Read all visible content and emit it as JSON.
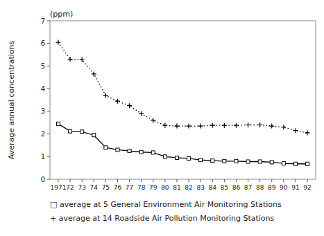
{
  "chart_data": {
    "type": "line",
    "y_label": "Average annual concentrations",
    "annotations": [
      "(ppm)"
    ],
    "x": [
      1971,
      1972,
      1973,
      1974,
      1975,
      1976,
      1977,
      1978,
      1979,
      1980,
      1981,
      1982,
      1983,
      1984,
      1985,
      1986,
      1987,
      1988,
      1989,
      1990,
      1991,
      1992
    ],
    "series": [
      {
        "name": "□ average at 5 General Environment Air Monitoring Stations",
        "color": "#000000",
        "marker": "square",
        "line_style": "solid",
        "values": [
          2.45,
          2.12,
          2.1,
          1.95,
          1.4,
          1.3,
          1.25,
          1.2,
          1.18,
          1.0,
          0.95,
          0.92,
          0.85,
          0.82,
          0.8,
          0.8,
          0.78,
          0.78,
          0.75,
          0.7,
          0.68,
          0.68
        ]
      },
      {
        "name": "+ average at 14 Roadside Air Pollution Monitoring Stations",
        "color": "#000000",
        "marker": "plus",
        "line_style": "dotted",
        "values": [
          6.05,
          5.3,
          5.28,
          4.65,
          3.7,
          3.45,
          3.25,
          2.9,
          2.6,
          2.38,
          2.35,
          2.35,
          2.35,
          2.38,
          2.38,
          2.38,
          2.4,
          2.4,
          2.35,
          2.3,
          2.15,
          2.05
        ]
      }
    ],
    "xlim": [
      1970.3,
      1992.7
    ],
    "xticks": [
      1971,
      {
        "value": 1972,
        "label": "72"
      },
      {
        "value": 1973,
        "label": "73"
      },
      {
        "value": 1974,
        "label": "74"
      },
      {
        "value": 1975,
        "label": "75"
      },
      {
        "value": 1976,
        "label": "76"
      },
      {
        "value": 1977,
        "label": "77"
      },
      {
        "value": 1978,
        "label": "78"
      },
      {
        "value": 1979,
        "label": "79"
      },
      {
        "value": 1980,
        "label": "80"
      },
      {
        "value": 1981,
        "label": "81"
      },
      {
        "value": 1982,
        "label": "82"
      },
      {
        "value": 1983,
        "label": "83"
      },
      {
        "value": 1984,
        "label": "84"
      },
      {
        "value": 1985,
        "label": "85"
      },
      {
        "value": 1986,
        "label": "86"
      },
      {
        "value": 1987,
        "label": "87"
      },
      {
        "value": 1988,
        "label": "88"
      },
      {
        "value": 1989,
        "label": "89"
      },
      {
        "value": 1990,
        "label": "90"
      },
      {
        "value": 1991,
        "label": "91"
      },
      {
        "value": 1992,
        "label": "92"
      }
    ],
    "ylim": [
      0.0,
      7.0
    ],
    "yticks": [
      0.0,
      1.0,
      2.0,
      3.0,
      4.0,
      5.0,
      6.0,
      7.0
    ],
    "grid": false,
    "legend": "bottom"
  }
}
